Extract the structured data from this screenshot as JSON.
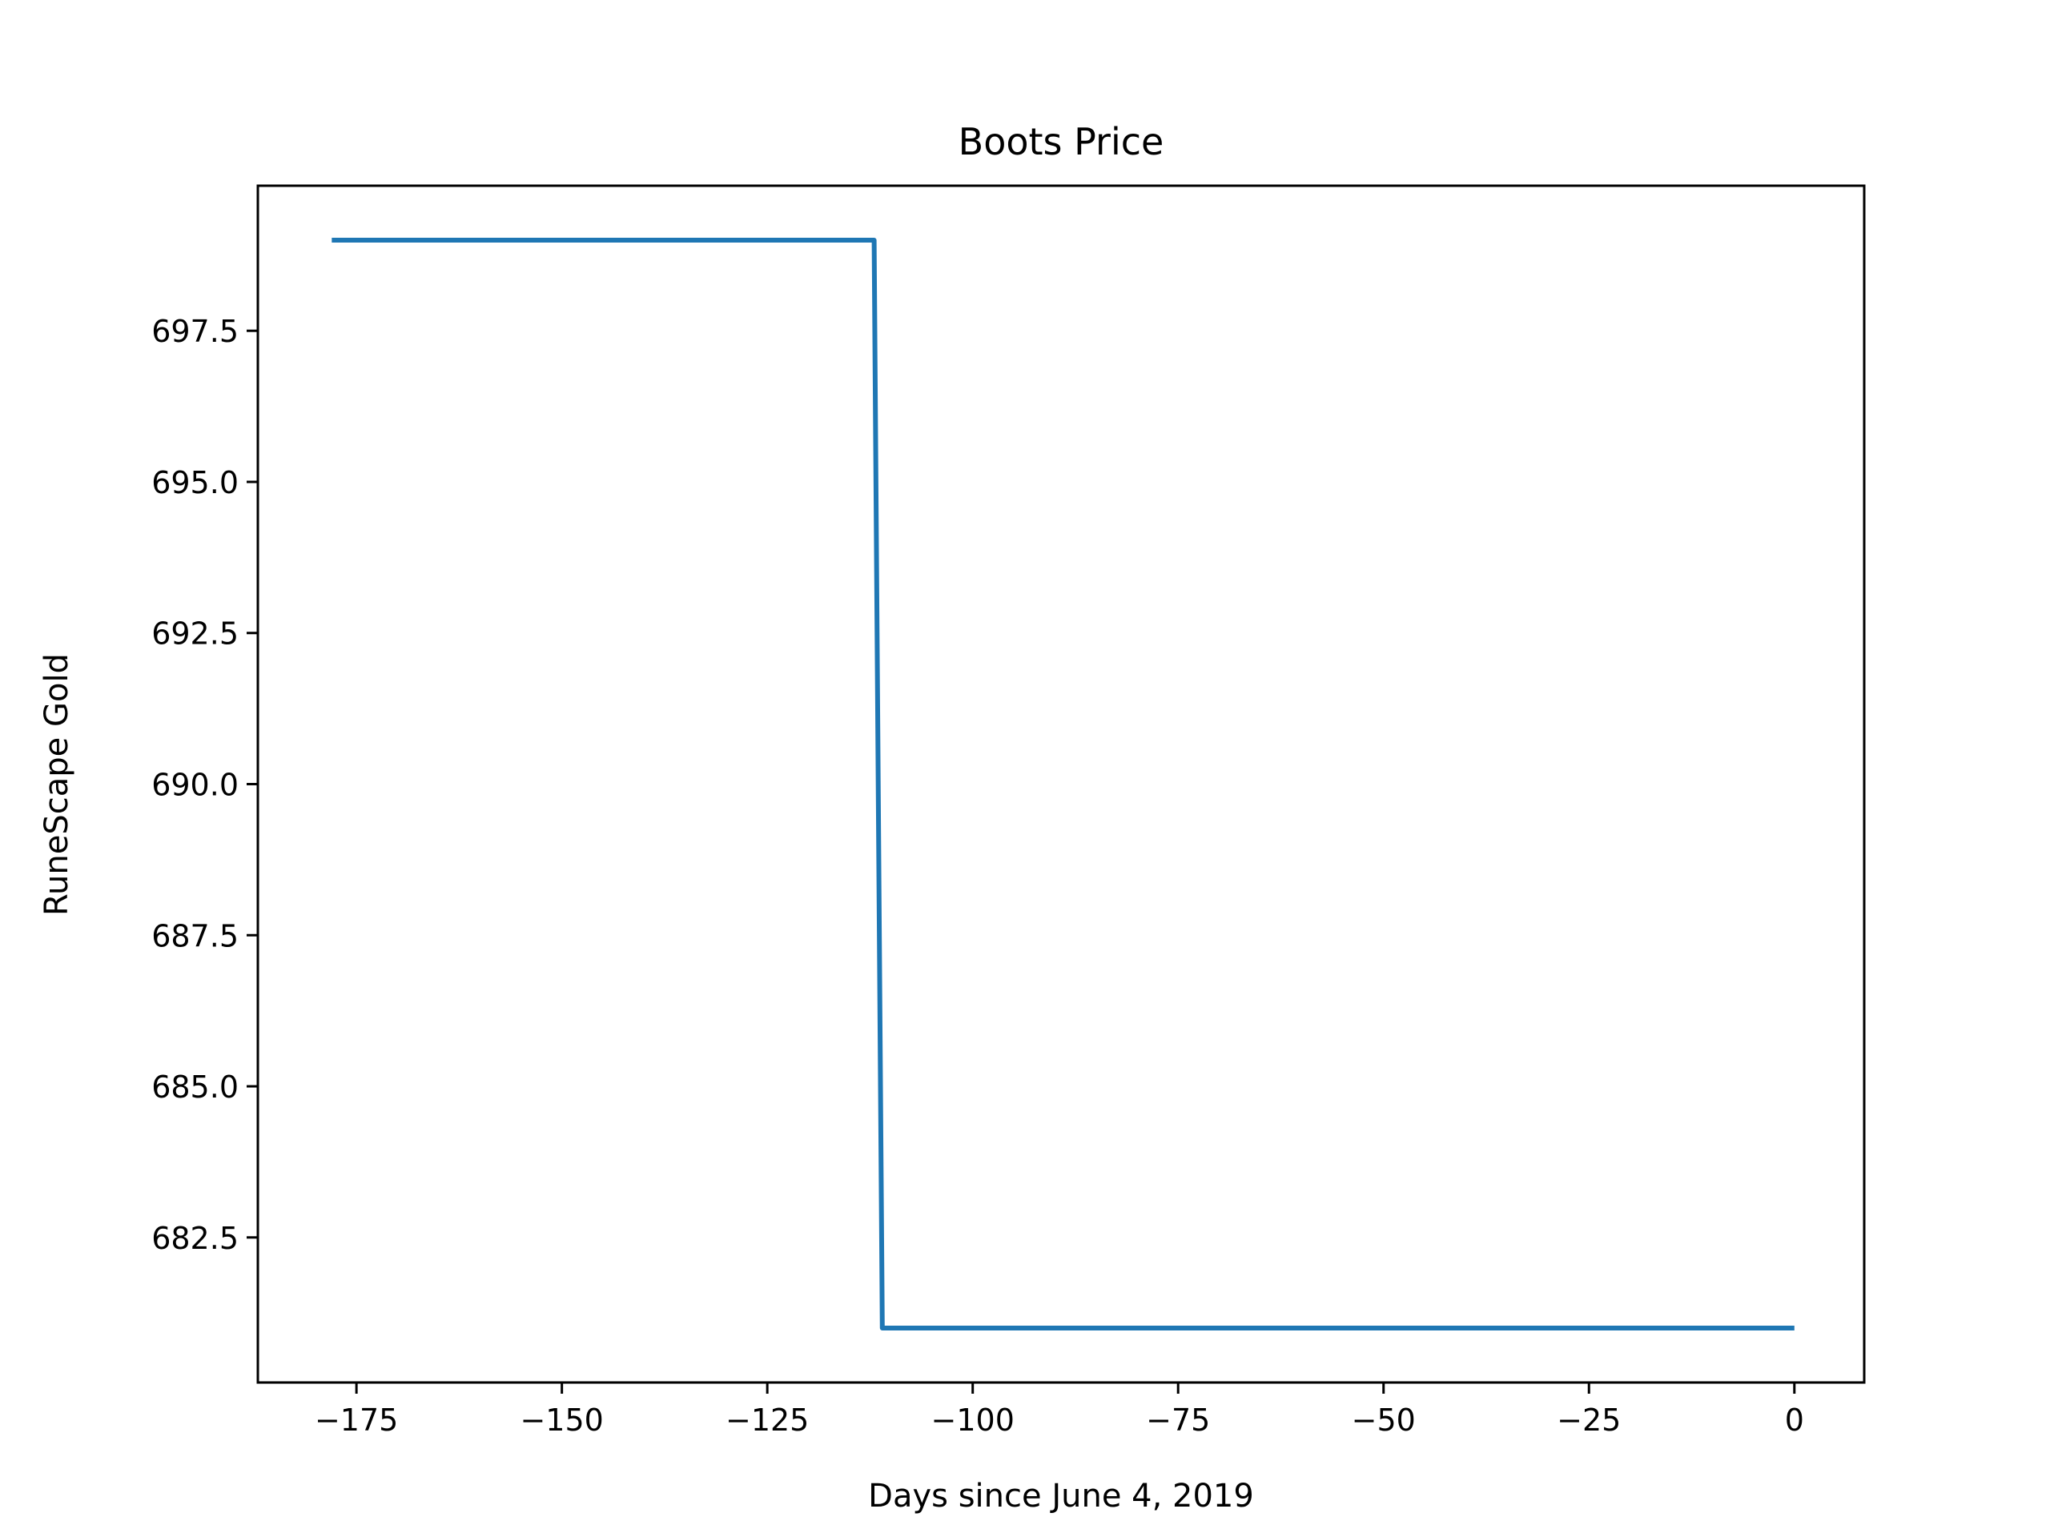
{
  "chart_data": {
    "type": "line",
    "title": "Boots Price",
    "xlabel": "Days since June 4, 2019",
    "ylabel": "RuneScape Gold",
    "xlim": [
      -187,
      8.5
    ],
    "ylim": [
      680.1,
      699.9
    ],
    "xticks": [
      -175,
      -150,
      -125,
      -100,
      -75,
      -50,
      -25,
      0
    ],
    "xtick_labels": [
      "−175",
      "−150",
      "−125",
      "−100",
      "−75",
      "−50",
      "−25",
      "0"
    ],
    "yticks": [
      682.5,
      685.0,
      687.5,
      690.0,
      692.5,
      695.0,
      697.5
    ],
    "ytick_labels": [
      "682.5",
      "685.0",
      "687.5",
      "690.0",
      "692.5",
      "695.0",
      "697.5"
    ],
    "grid": false,
    "series": [
      {
        "color": "#1f77b4",
        "x": [
          -178,
          -112,
          -111,
          0
        ],
        "y": [
          699,
          699,
          681,
          681
        ]
      }
    ]
  }
}
